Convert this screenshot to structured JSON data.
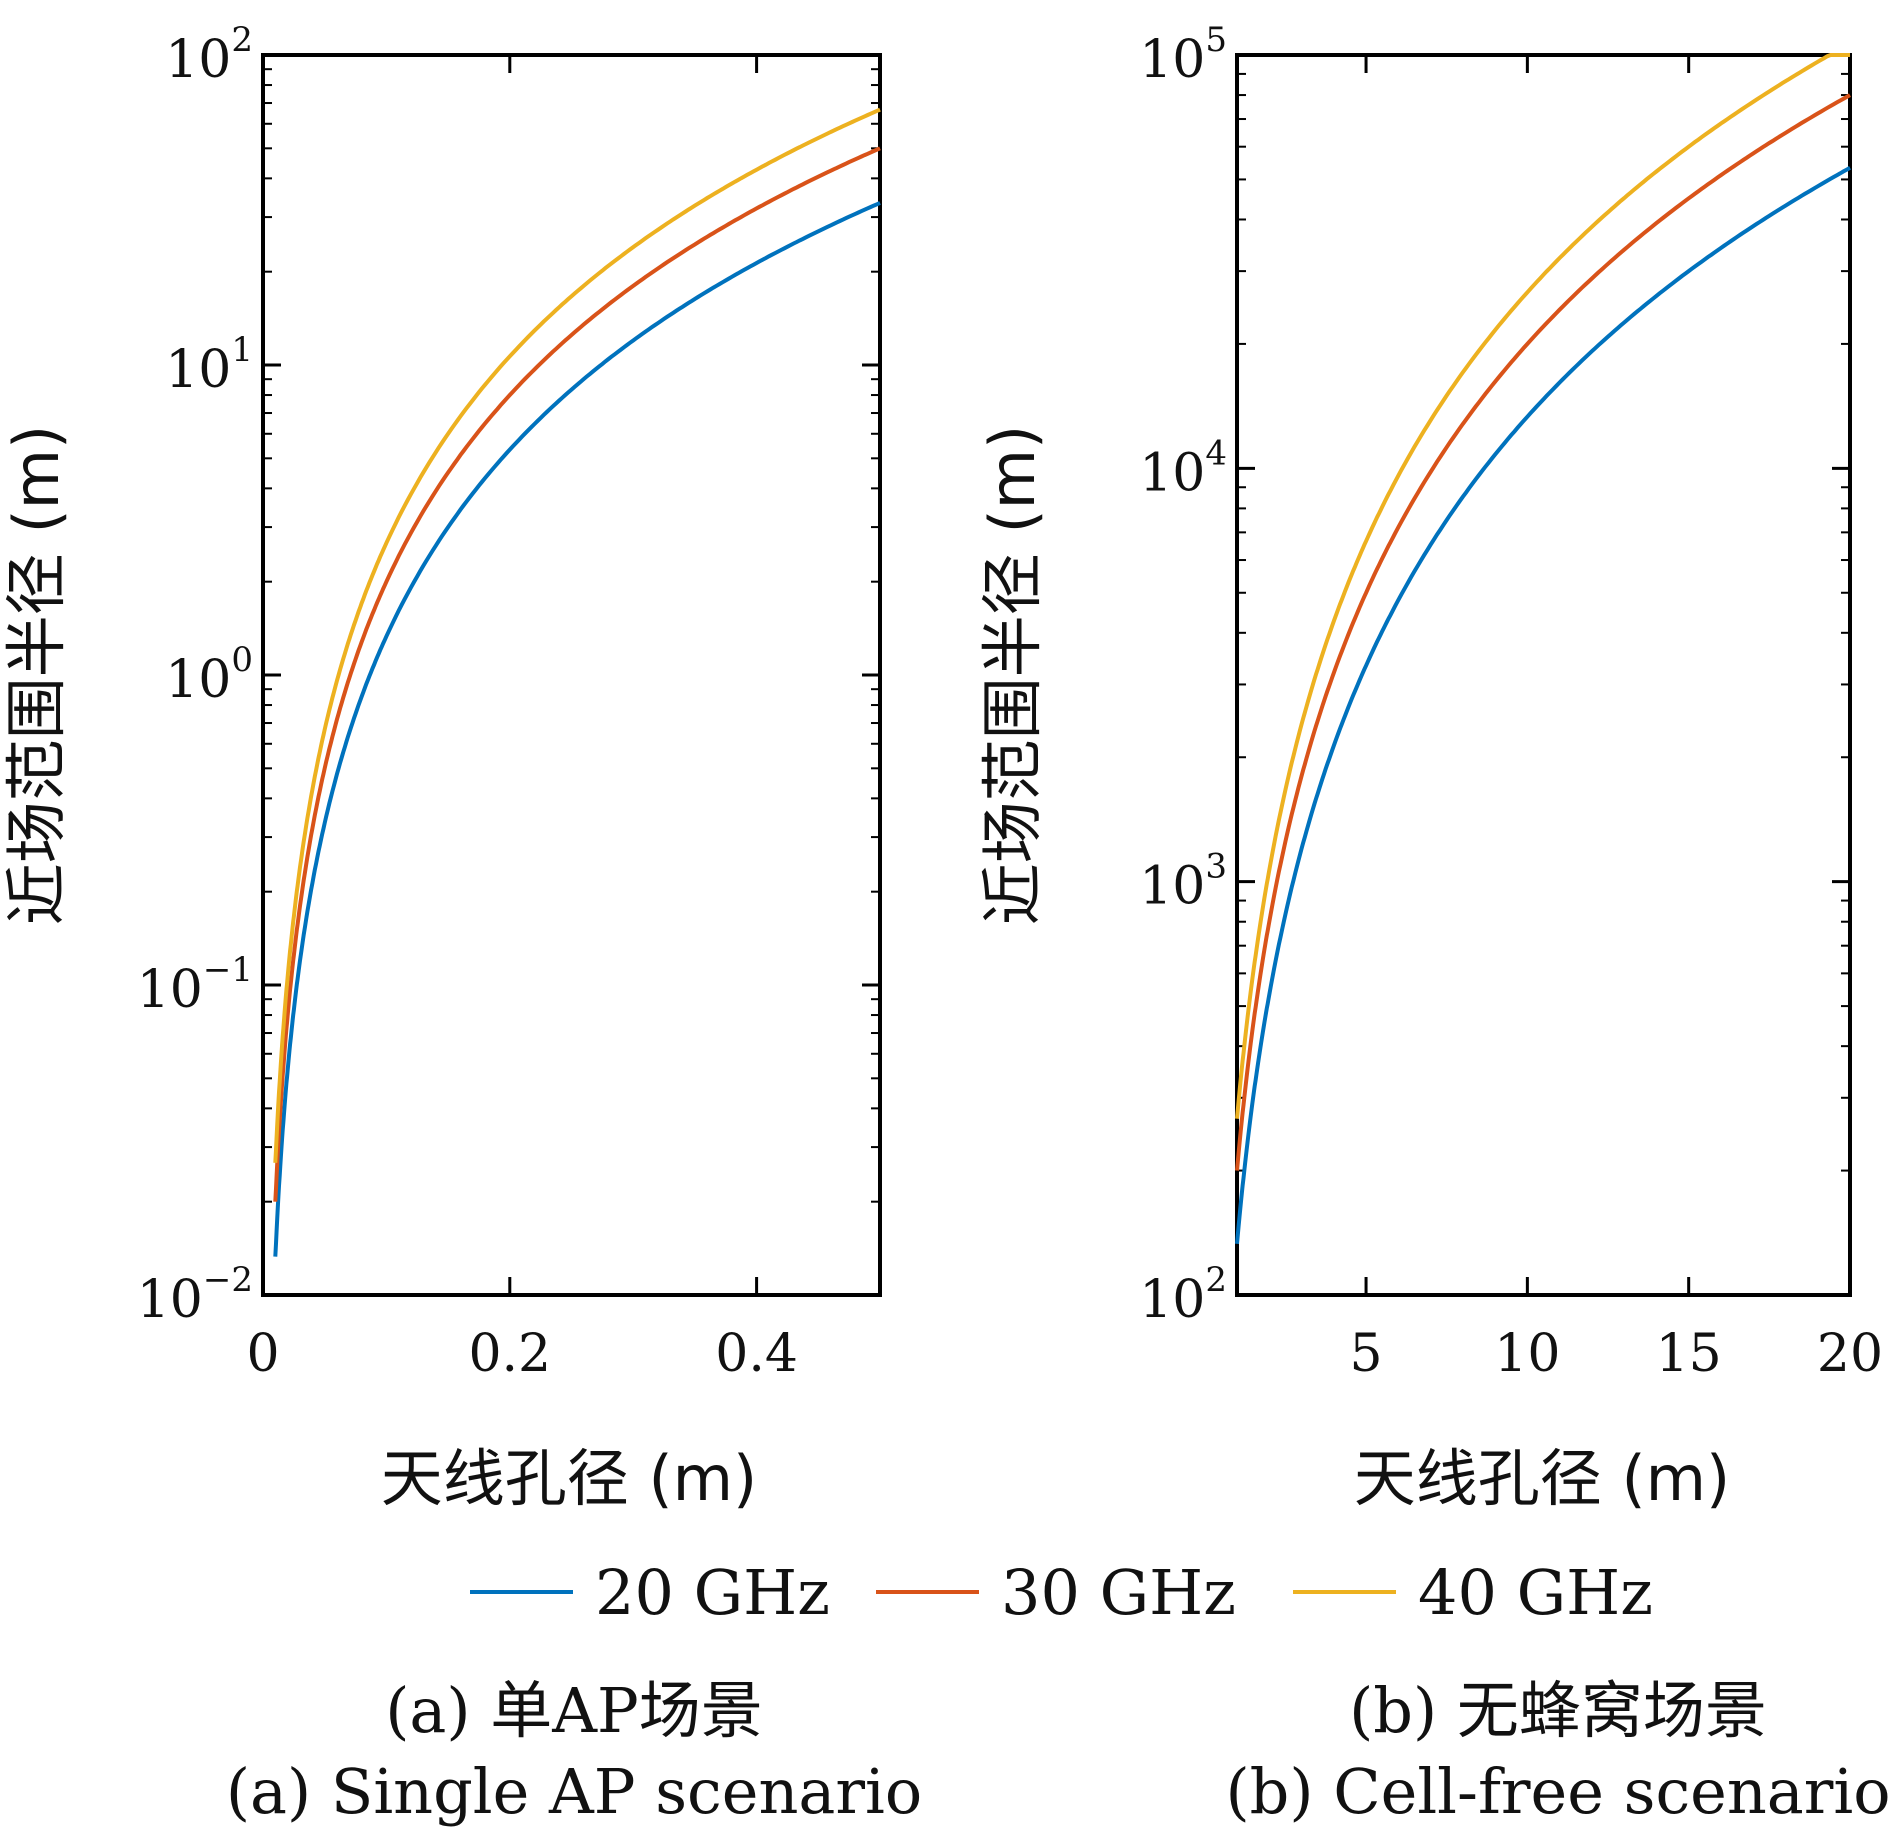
{
  "chart_data": [
    {
      "type": "line",
      "id": "a",
      "xlabel": "天线孔径 (m)",
      "ylabel": "近场范围半径 (m)",
      "xlim": [
        0,
        0.5
      ],
      "ylim": [
        0.01,
        100
      ],
      "yscale": "log",
      "x_ticks": [
        "0",
        "0.2",
        "0.4"
      ],
      "x_tick_values": [
        0,
        0.2,
        0.4
      ],
      "y_ticks": [
        {
          "base": "10",
          "exp": "−2"
        },
        {
          "base": "10",
          "exp": "−1"
        },
        {
          "base": "10",
          "exp": "0"
        },
        {
          "base": "10",
          "exp": "1"
        },
        {
          "base": "10",
          "exp": "2"
        }
      ],
      "y_tick_values": [
        0.01,
        0.1,
        1,
        10,
        100
      ],
      "x_samples": [
        0.01,
        0.02,
        0.03,
        0.05,
        0.075,
        0.1,
        0.15,
        0.2,
        0.25,
        0.3,
        0.35,
        0.4,
        0.45,
        0.5
      ],
      "series": [
        {
          "name": "20 GHz",
          "color": "#0072BD",
          "values": [
            0.0133,
            0.0533,
            0.12,
            0.333,
            0.75,
            1.333,
            3.0,
            5.333,
            8.333,
            12.0,
            16.333,
            21.333,
            27.0,
            33.333
          ]
        },
        {
          "name": "30 GHz",
          "color": "#D95319",
          "values": [
            0.02,
            0.08,
            0.18,
            0.5,
            1.125,
            2.0,
            4.5,
            8.0,
            12.5,
            18.0,
            24.5,
            32.0,
            40.5,
            50.0
          ]
        },
        {
          "name": "40 GHz",
          "color": "#EDB120",
          "values": [
            0.0267,
            0.1067,
            0.24,
            0.667,
            1.5,
            2.667,
            6.0,
            10.667,
            16.667,
            24.0,
            32.667,
            42.667,
            54.0,
            66.667
          ]
        }
      ],
      "caption_cn": "(a) 单AP场景",
      "caption_en": "(a) Single AP scenario"
    },
    {
      "type": "line",
      "id": "b",
      "xlabel": "天线孔径 (m)",
      "ylabel": "近场范围半径 (m)",
      "xlim": [
        1,
        20
      ],
      "ylim": [
        100,
        100000
      ],
      "yscale": "log",
      "x_ticks": [
        "5",
        "10",
        "15",
        "20"
      ],
      "x_tick_values": [
        5,
        10,
        15,
        20
      ],
      "y_ticks": [
        {
          "base": "10",
          "exp": "2"
        },
        {
          "base": "10",
          "exp": "3"
        },
        {
          "base": "10",
          "exp": "4"
        },
        {
          "base": "10",
          "exp": "5"
        }
      ],
      "y_tick_values": [
        100,
        1000,
        10000,
        100000
      ],
      "x_samples": [
        1,
        1.5,
        2,
        3,
        4,
        5,
        6,
        8,
        10,
        12,
        14,
        16,
        18,
        20
      ],
      "series": [
        {
          "name": "20 GHz",
          "color": "#0072BD",
          "values": [
            133,
            300,
            533,
            1200,
            2133,
            3333,
            4800,
            8533,
            13333,
            19200,
            26133,
            34133,
            43200,
            53333
          ]
        },
        {
          "name": "30 GHz",
          "color": "#D95319",
          "values": [
            200,
            450,
            800,
            1800,
            3200,
            5000,
            7200,
            12800,
            20000,
            28800,
            39200,
            51200,
            64800,
            80000
          ]
        },
        {
          "name": "40 GHz",
          "color": "#EDB120",
          "values": [
            267,
            600,
            1067,
            2400,
            4267,
            6667,
            9600,
            17067,
            26667,
            38400,
            52267,
            68267,
            86400,
            106667
          ]
        }
      ],
      "caption_cn": "(b) 无蜂窝场景",
      "caption_en": "(b) Cell-free scenario"
    }
  ],
  "legend": [
    {
      "label": "20 GHz",
      "color": "#0072BD"
    },
    {
      "label": "30 GHz",
      "color": "#D95319"
    },
    {
      "label": "40 GHz",
      "color": "#EDB120"
    }
  ]
}
